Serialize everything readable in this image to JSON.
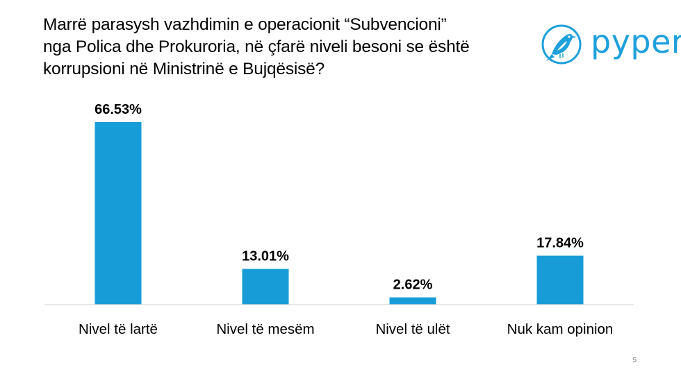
{
  "slide": {
    "title_lines": [
      "Marrë parasysh vazhdimin e operacionit “Subvencioni”",
      "nga Polica dhe Prokuroria, në çfarë niveli besoni se është",
      "korrupsioni në Ministrinë e Bujqësisë?"
    ],
    "logo_text": "pyper",
    "page_number": "5",
    "accent_color": "#1ea0dc",
    "bar_color": "#179cd8"
  },
  "chart_data": {
    "type": "bar",
    "categories": [
      "Nivel të lartë",
      "Nivel të mesëm",
      "Nivel të ulët",
      "Nuk kam opinion"
    ],
    "values": [
      66.53,
      13.01,
      2.62,
      17.84
    ],
    "value_labels": [
      "66.53%",
      "13.01%",
      "2.62%",
      "17.84%"
    ],
    "title": "",
    "xlabel": "",
    "ylabel": "",
    "ylim": [
      0,
      70
    ],
    "grid": false,
    "legend": "none"
  }
}
